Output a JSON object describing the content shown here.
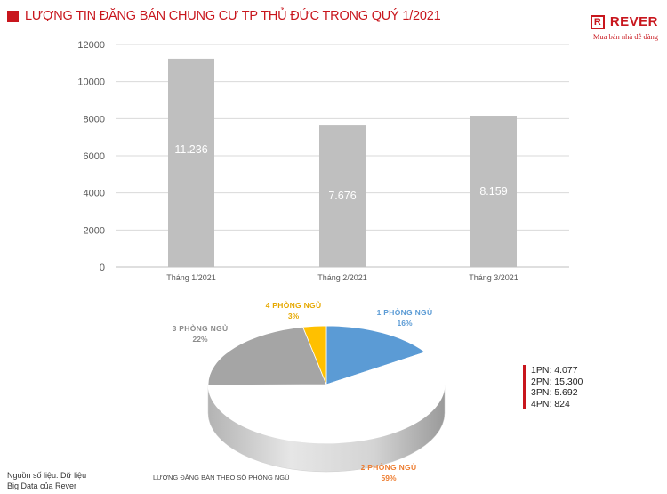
{
  "header": {
    "title": "LƯỢNG TIN ĐĂNG BÁN CHUNG CƯ TP THỦ ĐỨC TRONG QUÝ 1/2021",
    "accent_color": "#c8161d"
  },
  "logo": {
    "letter": "R",
    "name": "REVER",
    "tagline": "Mua bán nhà dễ dàng"
  },
  "chart_data": [
    {
      "type": "bar",
      "categories": [
        "Tháng 1/2021",
        "Tháng 2/2021",
        "Tháng 3/2021"
      ],
      "values": [
        11236,
        7676,
        8159
      ],
      "value_labels": [
        "11.236",
        "7.676",
        "8.159"
      ],
      "ylim": [
        0,
        12000
      ],
      "yticks": [
        0,
        2000,
        4000,
        6000,
        8000,
        10000,
        12000
      ],
      "grid": true,
      "bar_color": "#bfbfbf"
    },
    {
      "type": "pie",
      "style": "3d",
      "caption": "LƯỢNG ĐĂNG BÁN THEO SỐ PHÒNG NGỦ",
      "slices": [
        {
          "label": "1 PHÒNG NGỦ",
          "percent_label": "16%",
          "value": 4077,
          "color": "#5b9bd5",
          "label_color": "#5b9bd5"
        },
        {
          "label": "2 PHÒNG NGỦ",
          "percent_label": "59%",
          "value": 15300,
          "color": "#ffffff",
          "label_color": "#ed7d31"
        },
        {
          "label": "3 PHÒNG NGỦ",
          "percent_label": "22%",
          "value": 5692,
          "color": "#a5a5a5",
          "label_color": "#8c8c8c"
        },
        {
          "label": "4 PHÒNG NGỦ",
          "percent_label": "3%",
          "value": 824,
          "color": "#ffc000",
          "label_color": "#e6a800"
        }
      ],
      "legend": [
        "1PN: 4.077",
        "2PN: 15.300",
        "3PN: 5.692",
        "4PN: 824"
      ]
    }
  ],
  "source": {
    "line1": "Nguồn số liệu: Dữ liệu",
    "line2": "Big Data của Rever"
  }
}
